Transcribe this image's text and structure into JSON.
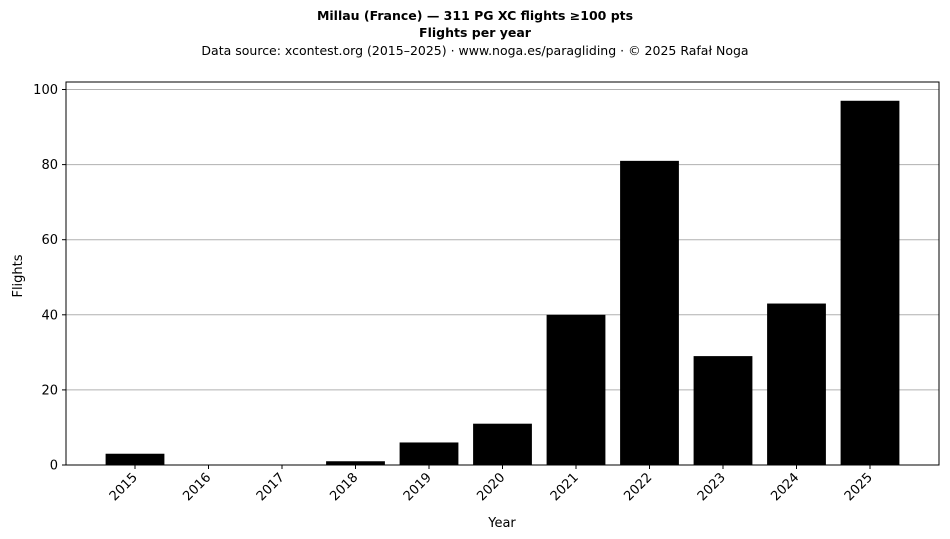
{
  "header": {
    "title": "Millau (France)  —  311 PG XC flights ≥100 pts",
    "subtitle": "Flights per year",
    "source": "Data source: xcontest.org (2015–2025)  ·  www.noga.es/paragliding  ·  © 2025 Rafał Noga"
  },
  "chart_data": {
    "type": "bar",
    "title": "Millau (France)  —  311 PG XC flights ≥100 pts",
    "subtitle": "Flights per year",
    "xlabel": "Year",
    "ylabel": "Flights",
    "categories": [
      "2015",
      "2016",
      "2017",
      "2018",
      "2019",
      "2020",
      "2021",
      "2022",
      "2023",
      "2024",
      "2025"
    ],
    "values": [
      3,
      0,
      0,
      1,
      6,
      11,
      40,
      81,
      29,
      43,
      97
    ],
    "ylim": [
      0,
      102
    ],
    "yticks": [
      0,
      20,
      40,
      60,
      80,
      100
    ],
    "grid": "horizontal",
    "bar_color": "#000000",
    "grid_color": "#b0b0b0"
  }
}
